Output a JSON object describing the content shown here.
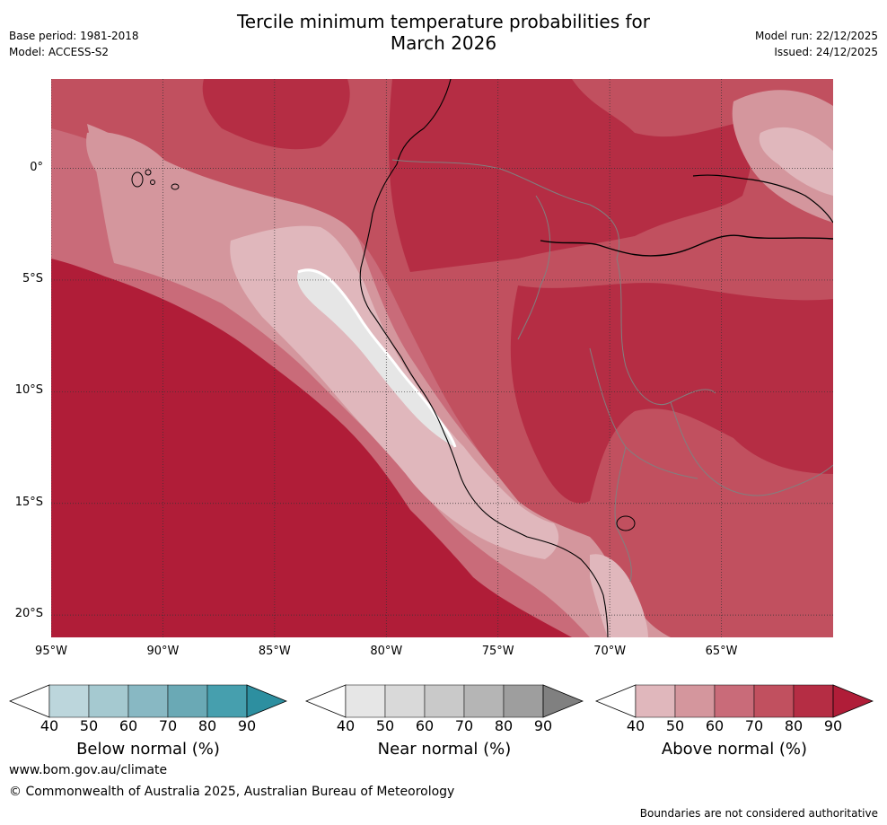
{
  "header": {
    "title_line1": "Tercile minimum temperature probabilities for",
    "title_line2": "March 2026",
    "base_period": "Base period: 1981-2018",
    "model": "Model: ACCESS-S2",
    "model_run": "Model run: 22/12/2025",
    "issued": "Issued: 24/12/2025"
  },
  "map": {
    "lon_labels": [
      "95°W",
      "90°W",
      "85°W",
      "80°W",
      "75°W",
      "70°W",
      "65°W"
    ],
    "lat_labels": [
      "0°",
      "5°S",
      "10°S",
      "15°S",
      "20°S"
    ],
    "lon_range": [
      -95,
      -60
    ],
    "lat_range": [
      -21,
      4
    ],
    "dominant_category": "Above normal"
  },
  "colorbars": [
    {
      "label": "Below normal (%)",
      "ticks": [
        "40",
        "50",
        "60",
        "70",
        "80",
        "90"
      ],
      "colors": [
        "#ffffff",
        "#bcd6dc",
        "#a5c9d0",
        "#88b8c3",
        "#6aa9b5",
        "#469fae",
        "#2d8fa0"
      ]
    },
    {
      "label": "Near normal (%)",
      "ticks": [
        "40",
        "50",
        "60",
        "70",
        "80",
        "90"
      ],
      "colors": [
        "#ffffff",
        "#e6e6e6",
        "#d9d9d9",
        "#c9c9c9",
        "#b5b5b5",
        "#9e9e9e",
        "#808080"
      ]
    },
    {
      "label": "Above normal (%)",
      "ticks": [
        "40",
        "50",
        "60",
        "70",
        "80",
        "90"
      ],
      "colors": [
        "#ffffff",
        "#e0b7bc",
        "#d4969d",
        "#c96b79",
        "#c1505f",
        "#b52d44",
        "#b01d38"
      ]
    }
  ],
  "footer": {
    "url": "www.bom.gov.au/climate",
    "copyright": "© Commonwealth of Australia 2025, Australian Bureau of Meteorology",
    "disclaimer": "Boundaries are not considered authoritative"
  }
}
